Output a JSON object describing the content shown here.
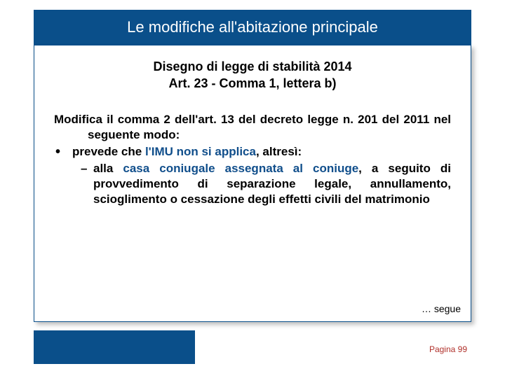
{
  "colors": {
    "header_bg": "#0a4f8a",
    "highlight": "#104e8b",
    "page_num": "#b0302a",
    "body_text": "#000000",
    "background": "#ffffff"
  },
  "title": "Le modifiche all'abitazione principale",
  "subtitle_line1": "Disegno di legge di stabilità 2014",
  "subtitle_line2": "Art. 23 - Comma 1, lettera b)",
  "intro": "Modifica il comma 2 dell'art. 13 del decreto legge n. 201 del 2011 nel seguente modo:",
  "bullet": {
    "pre": "prevede che ",
    "highlight": "l'IMU non si applica",
    "post": ", altresì:"
  },
  "sub_bullet": {
    "pre": "alla ",
    "highlight": "casa coniugale assegnata al coniuge",
    "post": ", a seguito di provvedimento di separazione legale, annullamento, scioglimento o cessazione degli effetti civili del matrimonio"
  },
  "continue_text": "… segue",
  "page_label": "Pagina 99"
}
